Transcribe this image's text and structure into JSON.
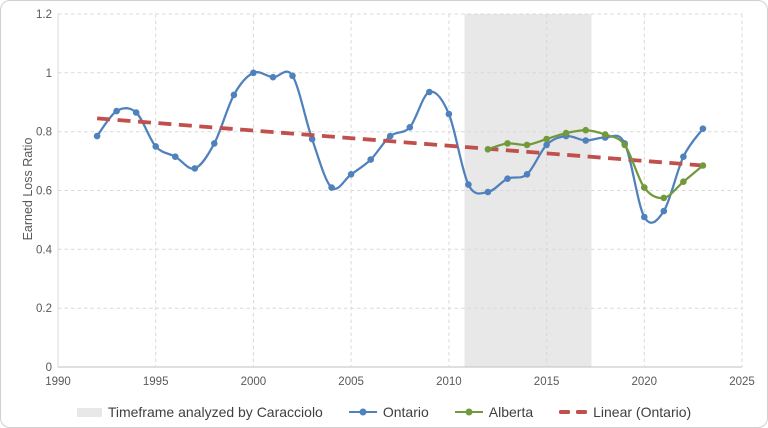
{
  "chart_data": {
    "type": "line",
    "ylabel": "Earned Loss Ratio",
    "xlim": [
      1990,
      2025
    ],
    "ylim": [
      0,
      1.2
    ],
    "x_ticks": [
      1990,
      1995,
      2000,
      2005,
      2010,
      2015,
      2020,
      2025
    ],
    "x_tick_labels": [
      "1990",
      "1995",
      "2000",
      "2005",
      "2010",
      "2015",
      "2020",
      "2025"
    ],
    "y_ticks": [
      0,
      0.2,
      0.4,
      0.6,
      0.8,
      1,
      1.2
    ],
    "y_tick_labels": [
      "0",
      "0.2",
      "0.4",
      "0.6",
      "0.8",
      "1",
      "1.2"
    ],
    "grid": true,
    "legend_position": "bottom",
    "grid_color": "#d9d9d9",
    "axis_color": "#bfbfbf",
    "text_color": "#595959",
    "legend_text_color": "#404040",
    "band": {
      "label": "Timeframe analyzed by Caracciolo",
      "x_start": 2010.8,
      "x_end": 2017.3,
      "color": "#e8e8e8"
    },
    "series": [
      {
        "name": "Ontario",
        "type": "smooth-line-markers",
        "color": "#4f81bd",
        "x": [
          1992,
          1993,
          1994,
          1995,
          1996,
          1997,
          1998,
          1999,
          2000,
          2001,
          2002,
          2003,
          2004,
          2005,
          2006,
          2007,
          2008,
          2009,
          2010,
          2011,
          2012,
          2013,
          2014,
          2015,
          2016,
          2017,
          2018,
          2019,
          2020,
          2021,
          2022,
          2023
        ],
        "values": [
          0.785,
          0.87,
          0.865,
          0.75,
          0.715,
          0.675,
          0.76,
          0.925,
          1.0,
          0.985,
          0.99,
          0.775,
          0.61,
          0.655,
          0.705,
          0.785,
          0.815,
          0.935,
          0.86,
          0.62,
          0.595,
          0.64,
          0.655,
          0.755,
          0.785,
          0.77,
          0.78,
          0.76,
          0.51,
          0.53,
          0.715,
          0.81
        ]
      },
      {
        "name": "Alberta",
        "type": "smooth-line-markers",
        "color": "#72993c",
        "x": [
          2012,
          2013,
          2014,
          2015,
          2016,
          2017,
          2018,
          2019,
          2020,
          2021,
          2022,
          2023
        ],
        "values": [
          0.74,
          0.76,
          0.755,
          0.775,
          0.795,
          0.805,
          0.79,
          0.755,
          0.61,
          0.575,
          0.63,
          0.685
        ]
      },
      {
        "name": "Linear (Ontario)",
        "type": "dashed-trendline",
        "color": "#c0504d",
        "x": [
          1992,
          2023
        ],
        "values": [
          0.845,
          0.685
        ]
      }
    ]
  }
}
